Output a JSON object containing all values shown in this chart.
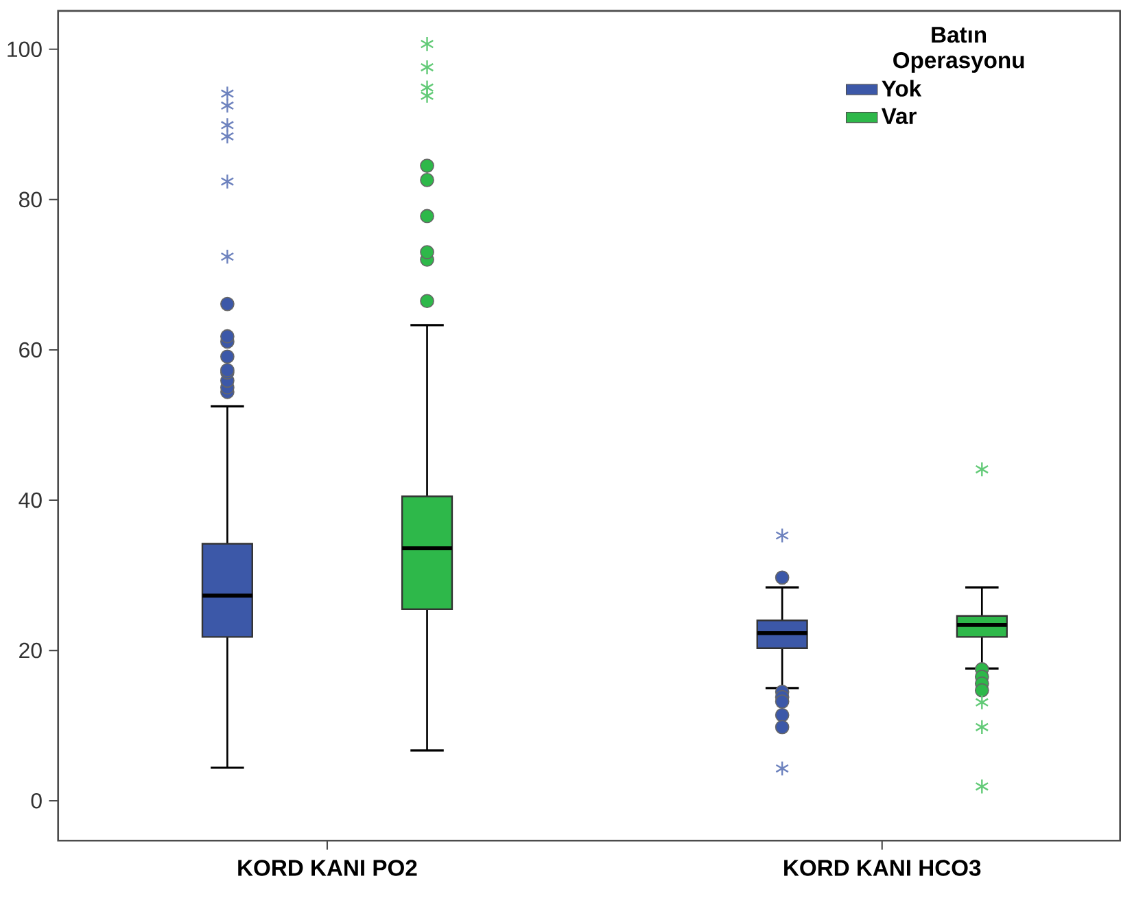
{
  "chart_data": {
    "type": "box",
    "categories": [
      "KORD KANI PO2",
      "KORD KANI HCO3"
    ],
    "legend_title": "Batın Operasyonu",
    "legend": "top right",
    "ylim": [
      -5.3,
      105.1
    ],
    "yticks": [
      0,
      20,
      40,
      60,
      80,
      100
    ],
    "series": [
      {
        "name": "Yok",
        "color": "#3c58a8",
        "boxes": [
          {
            "low": 4.4,
            "q1": 21.8,
            "median": 27.3,
            "q3": 34.2,
            "high": 52.5,
            "outliers": [
              54.4,
              55.0,
              55.9,
              57.0,
              57.3,
              59.1,
              61.1,
              61.8,
              66.1,
              72.4,
              82.4,
              88.4,
              89.9,
              92.5,
              94.1
            ]
          },
          {
            "low": 15.0,
            "q1": 20.3,
            "median": 22.3,
            "q3": 24.0,
            "high": 28.4,
            "outliers": [
              29.7,
              35.3,
              14.5,
              13.8,
              13.2,
              11.4,
              9.8,
              4.3
            ]
          }
        ]
      },
      {
        "name": "Var",
        "color": "#2eb84a",
        "boxes": [
          {
            "low": 6.7,
            "q1": 25.5,
            "median": 33.6,
            "q3": 40.5,
            "high": 63.3,
            "outliers": [
              66.5,
              72.0,
              73.0,
              77.8,
              82.6,
              84.5,
              93.8,
              94.9,
              97.6,
              100.7
            ]
          },
          {
            "low": 17.6,
            "q1": 21.8,
            "median": 23.4,
            "q3": 24.6,
            "high": 28.4,
            "outliers": [
              17.5,
              16.5,
              15.6,
              14.7,
              44.1,
              13.1,
              9.8,
              1.9
            ]
          }
        ]
      }
    ]
  }
}
